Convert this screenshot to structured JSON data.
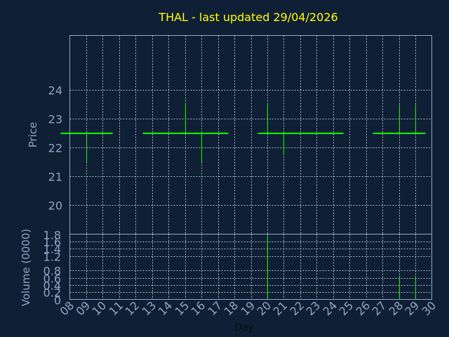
{
  "chart_data": {
    "title": "THAL - last updated 29/04/2026",
    "price": {
      "type": "ohlc",
      "ylabel": "Price",
      "yticks": [
        "20",
        "21",
        "22",
        "23",
        "24"
      ],
      "ylim": [
        19.0,
        25.9
      ],
      "color": "#00ff00",
      "bars": [
        {
          "day": 8,
          "open": 22.5,
          "high": 22.5,
          "low": 22.5,
          "close": 22.5
        },
        {
          "day": 9,
          "open": 22.5,
          "high": 22.5,
          "low": 21.45,
          "close": 22.5
        },
        {
          "day": 10,
          "open": 22.5,
          "high": 22.5,
          "low": 22.5,
          "close": 22.5
        },
        {
          "day": 13,
          "open": 22.5,
          "high": 22.5,
          "low": 22.5,
          "close": 22.5
        },
        {
          "day": 14,
          "open": 22.5,
          "high": 22.5,
          "low": 22.5,
          "close": 22.5
        },
        {
          "day": 15,
          "open": 22.5,
          "high": 23.55,
          "low": 22.5,
          "close": 22.5
        },
        {
          "day": 16,
          "open": 22.5,
          "high": 22.5,
          "low": 21.45,
          "close": 22.5
        },
        {
          "day": 17,
          "open": 22.5,
          "high": 22.5,
          "low": 22.5,
          "close": 22.5
        },
        {
          "day": 20,
          "open": 22.5,
          "high": 23.55,
          "low": 22.5,
          "close": 22.5
        },
        {
          "day": 21,
          "open": 22.5,
          "high": 22.5,
          "low": 21.75,
          "close": 22.5
        },
        {
          "day": 22,
          "open": 22.5,
          "high": 22.5,
          "low": 22.5,
          "close": 22.5
        },
        {
          "day": 23,
          "open": 22.5,
          "high": 22.5,
          "low": 22.5,
          "close": 22.5
        },
        {
          "day": 24,
          "open": 22.5,
          "high": 22.5,
          "low": 22.5,
          "close": 22.5
        },
        {
          "day": 27,
          "open": 22.5,
          "high": 22.5,
          "low": 22.5,
          "close": 22.5
        },
        {
          "day": 28,
          "open": 22.5,
          "high": 23.5,
          "low": 22.5,
          "close": 22.5
        },
        {
          "day": 29,
          "open": 22.5,
          "high": 23.5,
          "low": 22.5,
          "close": 22.5
        }
      ]
    },
    "volume": {
      "type": "bar",
      "ylabel": "Volume (0000)",
      "yticks": [
        "0",
        "0.2",
        "0.4",
        "0.6",
        "0.8",
        "1.2",
        "1.4",
        "1.6",
        "1.8"
      ],
      "ylim": [
        0,
        1.8
      ],
      "color": "#00ff00",
      "values": [
        {
          "day": 20,
          "volume": 1.75
        },
        {
          "day": 28,
          "volume": 0.65
        },
        {
          "day": 29,
          "volume": 0.65
        }
      ]
    },
    "xlabel": "Day",
    "x_day_range": [
      8,
      30
    ],
    "xticks": [
      "08",
      "09",
      "10",
      "11",
      "12",
      "13",
      "14",
      "15",
      "16",
      "17",
      "18",
      "19",
      "20",
      "21",
      "22",
      "23",
      "24",
      "25",
      "26",
      "27",
      "28",
      "29",
      "30"
    ],
    "grid": true
  }
}
